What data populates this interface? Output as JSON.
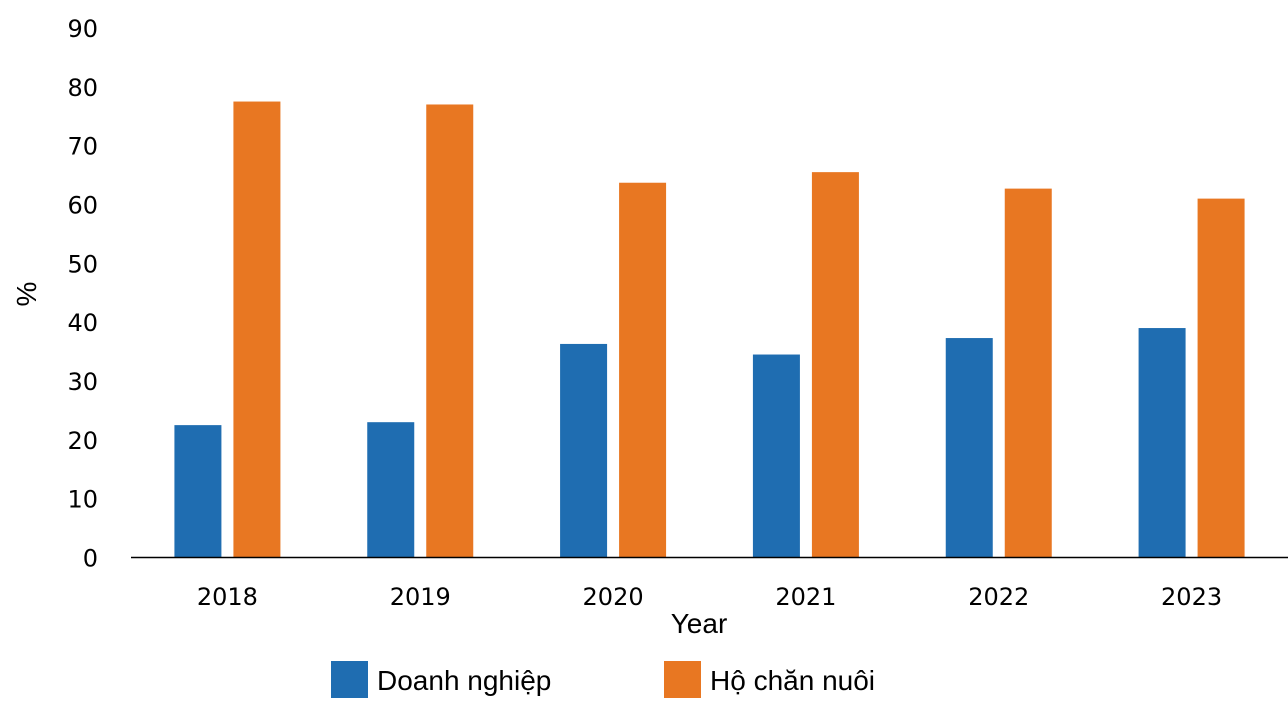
{
  "chart_data": {
    "type": "bar",
    "title": "",
    "xlabel": "Year",
    "ylabel": "%",
    "ylim": [
      0,
      90
    ],
    "yticks": [
      0,
      10,
      20,
      30,
      40,
      50,
      60,
      70,
      80,
      90
    ],
    "categories": [
      "2018",
      "2019",
      "2020",
      "2021",
      "2022",
      "2023"
    ],
    "series": [
      {
        "name": "Doanh nghiệp",
        "color": "#1f6db1",
        "values": [
          22.5,
          23.0,
          36.3,
          34.5,
          37.3,
          39.0
        ]
      },
      {
        "name": "Hộ chăn nuôi",
        "color": "#e87722",
        "values": [
          77.5,
          77.0,
          63.7,
          65.5,
          62.7,
          61.0
        ]
      }
    ],
    "grid": false,
    "legend_position": "bottom"
  }
}
